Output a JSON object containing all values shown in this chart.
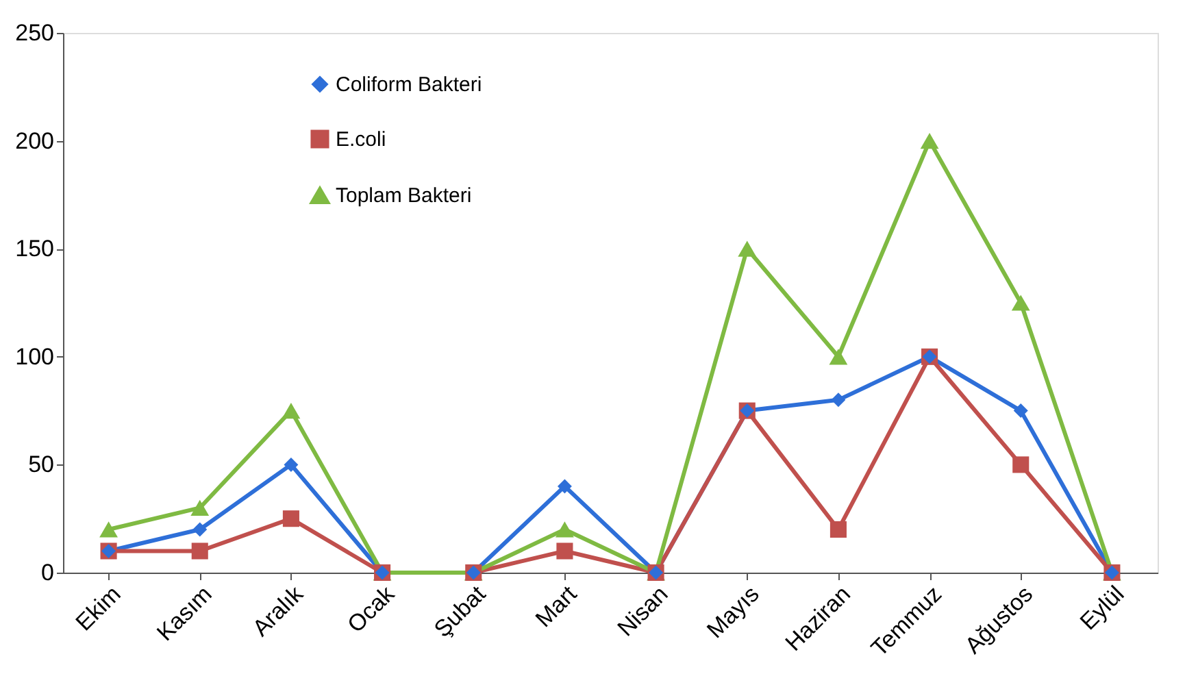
{
  "chart_data": {
    "type": "line",
    "categories": [
      "Ekim",
      "Kasım",
      "Aralık",
      "Ocak",
      "Şubat",
      "Mart",
      "Nisan",
      "Mayıs",
      "Haziran",
      "Temmuz",
      "Ağustos",
      "Eylül"
    ],
    "series": [
      {
        "name": "Coliform Bakteri",
        "color": "#2e6fd8",
        "marker": "diamond",
        "values": [
          10,
          20,
          50,
          0,
          0,
          40,
          0,
          75,
          80,
          100,
          75,
          0
        ]
      },
      {
        "name": "E.coli",
        "color": "#c0504d",
        "marker": "square",
        "values": [
          10,
          10,
          25,
          0,
          0,
          10,
          0,
          75,
          20,
          100,
          50,
          0
        ]
      },
      {
        "name": "Toplam Bakteri",
        "color": "#7fba42",
        "marker": "triangle",
        "values": [
          20,
          30,
          75,
          0,
          0,
          20,
          0,
          150,
          100,
          200,
          125,
          0
        ]
      }
    ],
    "ylim": [
      0,
      250
    ],
    "yticks": [
      0,
      50,
      100,
      150,
      200,
      250
    ],
    "grid": false,
    "legend": "top left",
    "line_style": "solid"
  }
}
